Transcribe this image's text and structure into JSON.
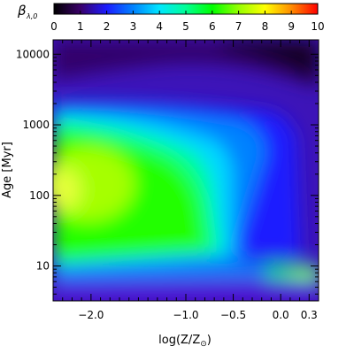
{
  "chart_data": {
    "type": "heatmap",
    "xlabel": "log(Z/Z",
    "xlabel_subscript": "⊙",
    "xlabel_close": ")",
    "ylabel": "Age [Myr]",
    "y_scale": "log",
    "xlim": [
      -2.4,
      0.4
    ],
    "ylim": [
      3.2,
      16000
    ],
    "x_ticks": [
      {
        "value": -2.0,
        "label": "−2.0"
      },
      {
        "value": -1.0,
        "label": "−1.0"
      },
      {
        "value": -0.5,
        "label": "−0.5"
      },
      {
        "value": 0.0,
        "label": "0.0"
      },
      {
        "value": 0.3,
        "label": "0.3"
      }
    ],
    "y_ticks": [
      {
        "value": 10,
        "label": "10"
      },
      {
        "value": 100,
        "label": "100"
      },
      {
        "value": 1000,
        "label": "1000"
      },
      {
        "value": 10000,
        "label": "10000"
      }
    ],
    "colorbar": {
      "symbol": "β",
      "subscript": "λ,0",
      "range": [
        0,
        10
      ],
      "ticks": [
        "0",
        "1",
        "2",
        "3",
        "4",
        "5",
        "6",
        "7",
        "8",
        "9",
        "10"
      ],
      "colors": [
        "#000000",
        "#3a006a",
        "#1c1cff",
        "#0082ff",
        "#00e6ff",
        "#00ff96",
        "#00ff00",
        "#96ff00",
        "#ffff00",
        "#ff8c00",
        "#ff0000"
      ]
    }
  }
}
